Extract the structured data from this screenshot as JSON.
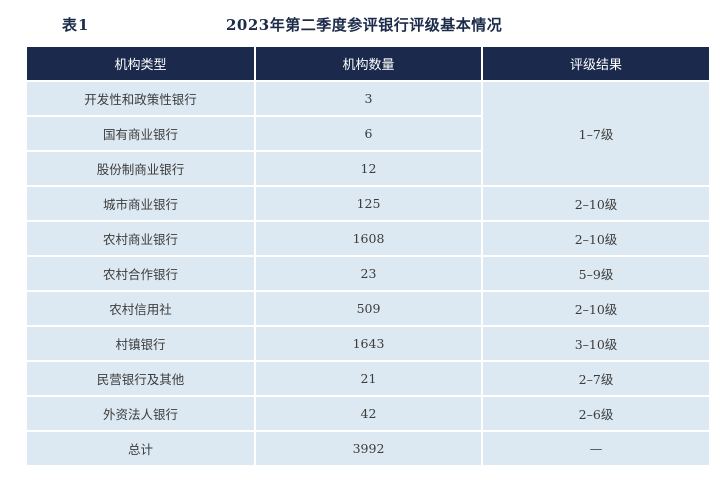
{
  "title": {
    "number": "表1",
    "text": "2023年第二季度参评银行评级基本情况"
  },
  "table": {
    "headers": [
      "机构类型",
      "机构数量",
      "评级结果"
    ],
    "rows": [
      {
        "type": "开发性和政策性银行",
        "count": "3"
      },
      {
        "type": "国有商业银行",
        "count": "6"
      },
      {
        "type": "股份制商业银行",
        "count": "12"
      },
      {
        "type": "城市商业银行",
        "count": "125",
        "result": "2–10级"
      },
      {
        "type": "农村商业银行",
        "count": "1608",
        "result": "2–10级"
      },
      {
        "type": "农村合作银行",
        "count": "23",
        "result": "5–9级"
      },
      {
        "type": "农村信用社",
        "count": "509",
        "result": "2–10级"
      },
      {
        "type": "村镇银行",
        "count": "1643",
        "result": "3–10级"
      },
      {
        "type": "民营银行及其他",
        "count": "21",
        "result": "2–7级"
      },
      {
        "type": "外资法人银行",
        "count": "42",
        "result": "2–6级"
      },
      {
        "type": "总计",
        "count": "3992",
        "result": "—"
      }
    ],
    "merged_result": "1–7级"
  }
}
